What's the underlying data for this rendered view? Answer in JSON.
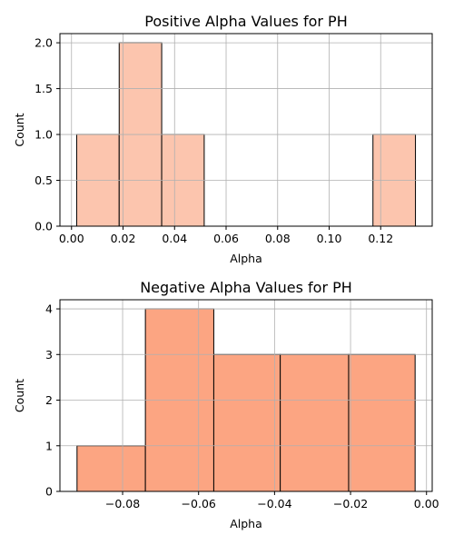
{
  "chart_data": [
    {
      "type": "histogram",
      "title": "Positive Alpha Values for PH",
      "xlabel": "Alpha",
      "ylabel": "Count",
      "bins": [
        {
          "start": 0.002,
          "end": 0.0185,
          "count": 1
        },
        {
          "start": 0.0185,
          "end": 0.035,
          "count": 2
        },
        {
          "start": 0.035,
          "end": 0.0515,
          "count": 1
        },
        {
          "start": 0.0515,
          "end": 0.068,
          "count": 0
        },
        {
          "start": 0.068,
          "end": 0.0845,
          "count": 0
        },
        {
          "start": 0.0845,
          "end": 0.101,
          "count": 0
        },
        {
          "start": 0.101,
          "end": 0.117,
          "count": 0
        },
        {
          "start": 0.117,
          "end": 0.1335,
          "count": 1
        }
      ],
      "xlim": [
        -0.0045,
        0.14
      ],
      "ylim": [
        0,
        2.1
      ],
      "xticks": [
        0.0,
        0.02,
        0.04,
        0.06,
        0.08,
        0.1,
        0.12
      ],
      "xtick_labels": [
        "0.00",
        "0.02",
        "0.04",
        "0.06",
        "0.08",
        "0.10",
        "0.12"
      ],
      "yticks": [
        0.0,
        0.5,
        1.0,
        1.5,
        2.0
      ],
      "ytick_labels": [
        "0.0",
        "0.5",
        "1.0",
        "1.5",
        "2.0"
      ],
      "grid": true,
      "color": "#fcc5ae"
    },
    {
      "type": "histogram",
      "title": "Negative Alpha Values for PH",
      "xlabel": "Alpha",
      "ylabel": "Count",
      "bins": [
        {
          "start": -0.092,
          "end": -0.074,
          "count": 1
        },
        {
          "start": -0.074,
          "end": -0.056,
          "count": 4
        },
        {
          "start": -0.056,
          "end": -0.0385,
          "count": 3
        },
        {
          "start": -0.0385,
          "end": -0.0205,
          "count": 3
        },
        {
          "start": -0.0205,
          "end": -0.003,
          "count": 3
        }
      ],
      "xlim": [
        -0.0965,
        0.0015
      ],
      "ylim": [
        0,
        4.2
      ],
      "xticks": [
        -0.08,
        -0.06,
        -0.04,
        -0.02,
        0.0
      ],
      "xtick_labels": [
        "−0.08",
        "−0.06",
        "−0.04",
        "−0.02",
        "0.00"
      ],
      "yticks": [
        0,
        1,
        2,
        3,
        4
      ],
      "ytick_labels": [
        "0",
        "1",
        "2",
        "3",
        "4"
      ],
      "grid": true,
      "color": "#fca582"
    }
  ]
}
